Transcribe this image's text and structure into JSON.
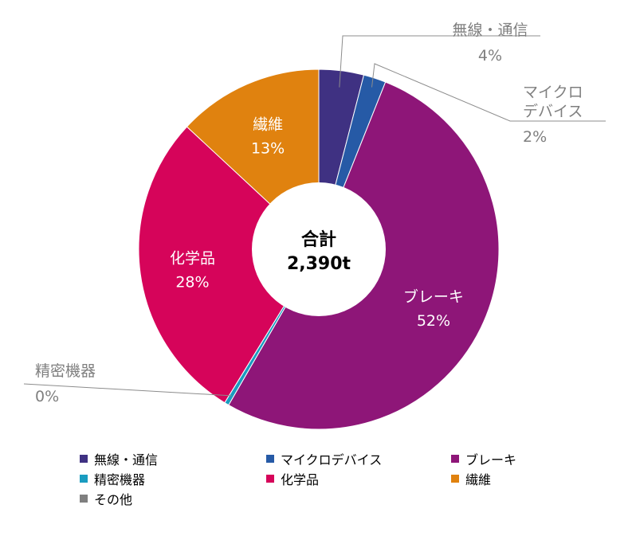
{
  "chart_data": {
    "type": "pie",
    "center_label": [
      "合計",
      "2,390t"
    ],
    "slices": [
      {
        "name": "無線・通信",
        "value": 4,
        "label": "4%",
        "color": "#3f3182",
        "label_style": "outside"
      },
      {
        "name": "マイクロデバイス",
        "value": 2,
        "label": "2%",
        "color": "#265aa6",
        "label_style": "outside"
      },
      {
        "name": "ブレーキ",
        "value": 52,
        "label": "52%",
        "color": "#8e1678",
        "label_style": "inside"
      },
      {
        "name": "精密機器",
        "value": 0.4,
        "label": "0%",
        "color": "#1a9cc0",
        "label_style": "outside"
      },
      {
        "name": "化学品",
        "value": 28,
        "label": "28%",
        "color": "#d6045a",
        "label_style": "inside"
      },
      {
        "name": "繊維",
        "value": 13,
        "label": "13%",
        "color": "#e0820f",
        "label_style": "inside"
      },
      {
        "name": "その他",
        "value": 0,
        "label": "",
        "color": "#7f7f7f",
        "label_style": "none"
      }
    ],
    "outside_label_lines": {
      "マイクロデバイス": [
        "マイクロ",
        "デバイス"
      ]
    },
    "legend_position": "bottom"
  }
}
